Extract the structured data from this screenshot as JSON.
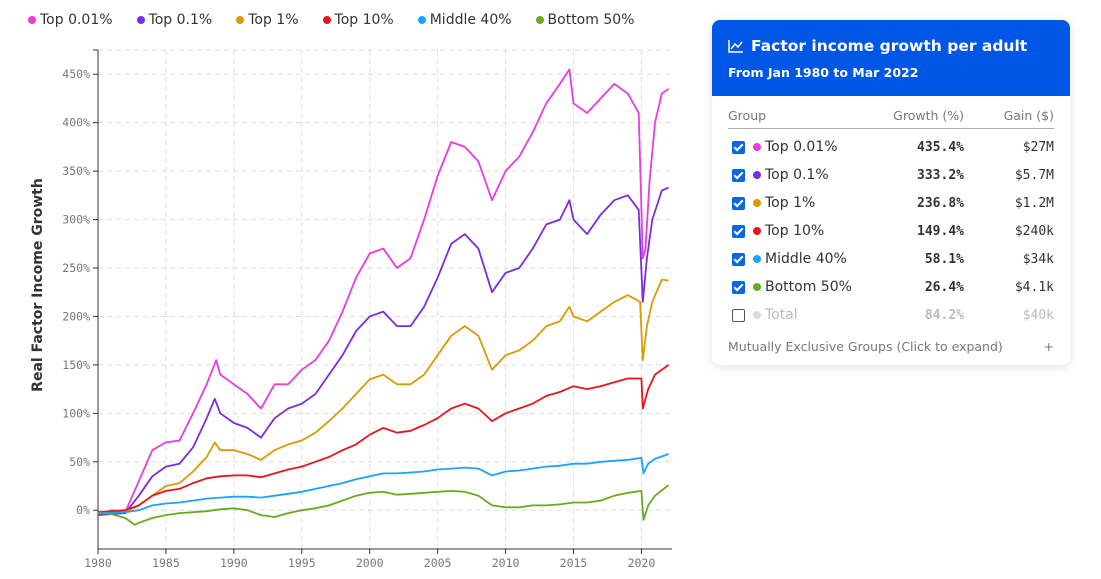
{
  "chart_data": {
    "type": "line",
    "title": "",
    "xlabel": "",
    "ylabel": "Real Factor Income Growth",
    "xlim": [
      1980,
      2022.25
    ],
    "ylim": [
      -40,
      475
    ],
    "x_ticks": [
      1980,
      1985,
      1990,
      1995,
      2000,
      2005,
      2010,
      2015,
      2020
    ],
    "y_ticks": [
      0,
      50,
      100,
      150,
      200,
      250,
      300,
      350,
      400,
      450
    ],
    "y_tick_labels": [
      "0%",
      "50%",
      "100%",
      "150%",
      "200%",
      "250%",
      "300%",
      "350%",
      "400%",
      "450%"
    ],
    "grid": true,
    "legend_position": "top-left",
    "series": [
      {
        "name": "Top 0.01%",
        "color": "#e83be0",
        "points": [
          [
            1980,
            -5
          ],
          [
            1981,
            0
          ],
          [
            1982,
            -2
          ],
          [
            1983,
            30
          ],
          [
            1984,
            62
          ],
          [
            1985,
            70
          ],
          [
            1986,
            72
          ],
          [
            1987,
            100
          ],
          [
            1988,
            130
          ],
          [
            1988.7,
            155
          ],
          [
            1989,
            140
          ],
          [
            1990,
            130
          ],
          [
            1991,
            120
          ],
          [
            1992,
            105
          ],
          [
            1993,
            130
          ],
          [
            1994,
            130
          ],
          [
            1995,
            145
          ],
          [
            1996,
            155
          ],
          [
            1997,
            175
          ],
          [
            1998,
            205
          ],
          [
            1999,
            240
          ],
          [
            2000,
            265
          ],
          [
            2001,
            270
          ],
          [
            2002,
            250
          ],
          [
            2003,
            260
          ],
          [
            2004,
            300
          ],
          [
            2005,
            345
          ],
          [
            2006,
            380
          ],
          [
            2007,
            375
          ],
          [
            2008,
            360
          ],
          [
            2009,
            320
          ],
          [
            2010,
            350
          ],
          [
            2011,
            365
          ],
          [
            2012,
            390
          ],
          [
            2013,
            420
          ],
          [
            2014,
            440
          ],
          [
            2014.7,
            455
          ],
          [
            2015,
            420
          ],
          [
            2016,
            410
          ],
          [
            2017,
            425
          ],
          [
            2018,
            440
          ],
          [
            2019,
            430
          ],
          [
            2019.8,
            410
          ],
          [
            2020.1,
            260
          ],
          [
            2020.3,
            270
          ],
          [
            2020.6,
            340
          ],
          [
            2021,
            400
          ],
          [
            2021.5,
            430
          ],
          [
            2022,
            435
          ]
        ]
      },
      {
        "name": "Top 0.1%",
        "color": "#7b2be0",
        "points": [
          [
            1980,
            -5
          ],
          [
            1982,
            -3
          ],
          [
            1983,
            15
          ],
          [
            1984,
            35
          ],
          [
            1985,
            45
          ],
          [
            1986,
            48
          ],
          [
            1987,
            65
          ],
          [
            1988,
            95
          ],
          [
            1988.6,
            115
          ],
          [
            1989,
            100
          ],
          [
            1990,
            90
          ],
          [
            1991,
            85
          ],
          [
            1992,
            75
          ],
          [
            1993,
            95
          ],
          [
            1994,
            105
          ],
          [
            1995,
            110
          ],
          [
            1996,
            120
          ],
          [
            1997,
            140
          ],
          [
            1998,
            160
          ],
          [
            1999,
            185
          ],
          [
            2000,
            200
          ],
          [
            2001,
            205
          ],
          [
            2002,
            190
          ],
          [
            2003,
            190
          ],
          [
            2004,
            210
          ],
          [
            2005,
            240
          ],
          [
            2006,
            275
          ],
          [
            2007,
            285
          ],
          [
            2008,
            270
          ],
          [
            2009,
            225
          ],
          [
            2010,
            245
          ],
          [
            2011,
            250
          ],
          [
            2012,
            270
          ],
          [
            2013,
            295
          ],
          [
            2014,
            300
          ],
          [
            2014.7,
            320
          ],
          [
            2015,
            300
          ],
          [
            2016,
            285
          ],
          [
            2017,
            305
          ],
          [
            2018,
            320
          ],
          [
            2019,
            325
          ],
          [
            2019.8,
            310
          ],
          [
            2020.1,
            215
          ],
          [
            2020.4,
            260
          ],
          [
            2020.8,
            300
          ],
          [
            2021.5,
            330
          ],
          [
            2022,
            333
          ]
        ]
      },
      {
        "name": "Top 1%",
        "color": "#dd9a00",
        "points": [
          [
            1980,
            -3
          ],
          [
            1982,
            -2
          ],
          [
            1983,
            5
          ],
          [
            1984,
            15
          ],
          [
            1985,
            25
          ],
          [
            1986,
            28
          ],
          [
            1987,
            40
          ],
          [
            1988,
            55
          ],
          [
            1988.6,
            70
          ],
          [
            1989,
            62
          ],
          [
            1990,
            62
          ],
          [
            1991,
            58
          ],
          [
            1992,
            52
          ],
          [
            1993,
            62
          ],
          [
            1994,
            68
          ],
          [
            1995,
            72
          ],
          [
            1996,
            80
          ],
          [
            1997,
            92
          ],
          [
            1998,
            105
          ],
          [
            1999,
            120
          ],
          [
            2000,
            135
          ],
          [
            2001,
            140
          ],
          [
            2002,
            130
          ],
          [
            2003,
            130
          ],
          [
            2004,
            140
          ],
          [
            2005,
            160
          ],
          [
            2006,
            180
          ],
          [
            2007,
            190
          ],
          [
            2008,
            180
          ],
          [
            2009,
            145
          ],
          [
            2010,
            160
          ],
          [
            2011,
            165
          ],
          [
            2012,
            175
          ],
          [
            2013,
            190
          ],
          [
            2014,
            195
          ],
          [
            2014.7,
            210
          ],
          [
            2015,
            200
          ],
          [
            2016,
            195
          ],
          [
            2017,
            205
          ],
          [
            2018,
            215
          ],
          [
            2019,
            222
          ],
          [
            2019.9,
            215
          ],
          [
            2020.1,
            155
          ],
          [
            2020.4,
            190
          ],
          [
            2020.8,
            215
          ],
          [
            2021.5,
            238
          ],
          [
            2022,
            237
          ]
        ]
      },
      {
        "name": "Top 10%",
        "color": "#e8141c",
        "points": [
          [
            1980,
            -2
          ],
          [
            1982,
            0
          ],
          [
            1983,
            5
          ],
          [
            1984,
            15
          ],
          [
            1985,
            20
          ],
          [
            1986,
            22
          ],
          [
            1987,
            28
          ],
          [
            1988,
            33
          ],
          [
            1989,
            35
          ],
          [
            1990,
            36
          ],
          [
            1991,
            36
          ],
          [
            1992,
            34
          ],
          [
            1993,
            38
          ],
          [
            1994,
            42
          ],
          [
            1995,
            45
          ],
          [
            1996,
            50
          ],
          [
            1997,
            55
          ],
          [
            1998,
            62
          ],
          [
            1999,
            68
          ],
          [
            2000,
            78
          ],
          [
            2001,
            85
          ],
          [
            2002,
            80
          ],
          [
            2003,
            82
          ],
          [
            2004,
            88
          ],
          [
            2005,
            95
          ],
          [
            2006,
            105
          ],
          [
            2007,
            110
          ],
          [
            2008,
            105
          ],
          [
            2009,
            92
          ],
          [
            2010,
            100
          ],
          [
            2011,
            105
          ],
          [
            2012,
            110
          ],
          [
            2013,
            118
          ],
          [
            2014,
            122
          ],
          [
            2015,
            128
          ],
          [
            2016,
            125
          ],
          [
            2017,
            128
          ],
          [
            2018,
            132
          ],
          [
            2019,
            136
          ],
          [
            2020,
            136
          ],
          [
            2020.1,
            105
          ],
          [
            2020.5,
            125
          ],
          [
            2021,
            140
          ],
          [
            2022,
            150
          ]
        ]
      },
      {
        "name": "Middle 40%",
        "color": "#1aa3ff",
        "points": [
          [
            1980,
            -3
          ],
          [
            1982,
            -2
          ],
          [
            1983,
            0
          ],
          [
            1984,
            5
          ],
          [
            1985,
            7
          ],
          [
            1986,
            8
          ],
          [
            1987,
            10
          ],
          [
            1988,
            12
          ],
          [
            1989,
            13
          ],
          [
            1990,
            14
          ],
          [
            1991,
            14
          ],
          [
            1992,
            13
          ],
          [
            1993,
            15
          ],
          [
            1994,
            17
          ],
          [
            1995,
            19
          ],
          [
            1996,
            22
          ],
          [
            1997,
            25
          ],
          [
            1998,
            28
          ],
          [
            1999,
            32
          ],
          [
            2000,
            35
          ],
          [
            2001,
            38
          ],
          [
            2002,
            38
          ],
          [
            2003,
            39
          ],
          [
            2004,
            40
          ],
          [
            2005,
            42
          ],
          [
            2006,
            43
          ],
          [
            2007,
            44
          ],
          [
            2008,
            43
          ],
          [
            2009,
            36
          ],
          [
            2010,
            40
          ],
          [
            2011,
            41
          ],
          [
            2012,
            43
          ],
          [
            2013,
            45
          ],
          [
            2014,
            46
          ],
          [
            2015,
            48
          ],
          [
            2016,
            48
          ],
          [
            2017,
            50
          ],
          [
            2018,
            51
          ],
          [
            2019,
            52
          ],
          [
            2020,
            54
          ],
          [
            2020.15,
            38
          ],
          [
            2020.5,
            48
          ],
          [
            2021,
            53
          ],
          [
            2022,
            58
          ]
        ]
      },
      {
        "name": "Bottom 50%",
        "color": "#6aaa1e",
        "points": [
          [
            1980,
            -3
          ],
          [
            1981,
            -4
          ],
          [
            1982,
            -8
          ],
          [
            1982.7,
            -15
          ],
          [
            1983,
            -13
          ],
          [
            1984,
            -8
          ],
          [
            1985,
            -5
          ],
          [
            1986,
            -3
          ],
          [
            1987,
            -2
          ],
          [
            1988,
            -1
          ],
          [
            1989,
            1
          ],
          [
            1990,
            2
          ],
          [
            1991,
            0
          ],
          [
            1992,
            -5
          ],
          [
            1993,
            -7
          ],
          [
            1994,
            -3
          ],
          [
            1995,
            0
          ],
          [
            1996,
            2
          ],
          [
            1997,
            5
          ],
          [
            1998,
            10
          ],
          [
            1999,
            15
          ],
          [
            2000,
            18
          ],
          [
            2001,
            19
          ],
          [
            2002,
            16
          ],
          [
            2003,
            17
          ],
          [
            2004,
            18
          ],
          [
            2005,
            19
          ],
          [
            2006,
            20
          ],
          [
            2007,
            19
          ],
          [
            2008,
            15
          ],
          [
            2009,
            5
          ],
          [
            2010,
            3
          ],
          [
            2011,
            3
          ],
          [
            2012,
            5
          ],
          [
            2013,
            5
          ],
          [
            2014,
            6
          ],
          [
            2015,
            8
          ],
          [
            2016,
            8
          ],
          [
            2017,
            10
          ],
          [
            2018,
            15
          ],
          [
            2019,
            18
          ],
          [
            2020,
            20
          ],
          [
            2020.15,
            -10
          ],
          [
            2020.5,
            5
          ],
          [
            2021,
            15
          ],
          [
            2022,
            26
          ]
        ]
      }
    ]
  },
  "panel": {
    "title": "Factor income growth per adult",
    "icon": "line-chart-icon",
    "subtitle": "From Jan 1980 to Mar 2022",
    "headers": {
      "group": "Group",
      "growth": "Growth (%)",
      "gain": "Gain ($)"
    },
    "rows": [
      {
        "label": "Top 0.01%",
        "growth": "435.4%",
        "gain": "$27M",
        "checked": true,
        "color": "#e83be0"
      },
      {
        "label": "Top 0.1%",
        "growth": "333.2%",
        "gain": "$5.7M",
        "checked": true,
        "color": "#7b2be0"
      },
      {
        "label": "Top 1%",
        "growth": "236.8%",
        "gain": "$1.2M",
        "checked": true,
        "color": "#dd9a00"
      },
      {
        "label": "Top 10%",
        "growth": "149.4%",
        "gain": "$240k",
        "checked": true,
        "color": "#e8141c"
      },
      {
        "label": "Middle 40%",
        "growth": "58.1%",
        "gain": "$34k",
        "checked": true,
        "color": "#1aa3ff"
      },
      {
        "label": "Bottom 50%",
        "growth": "26.4%",
        "gain": "$4.1k",
        "checked": true,
        "color": "#6aaa1e"
      },
      {
        "label": "Total",
        "growth": "84.2%",
        "gain": "$40k",
        "checked": false,
        "color": "#dddddd"
      }
    ],
    "expand_label": "Mutually Exclusive Groups (Click to expand)",
    "expand_icon": "+",
    "accent": "#0057e6"
  }
}
